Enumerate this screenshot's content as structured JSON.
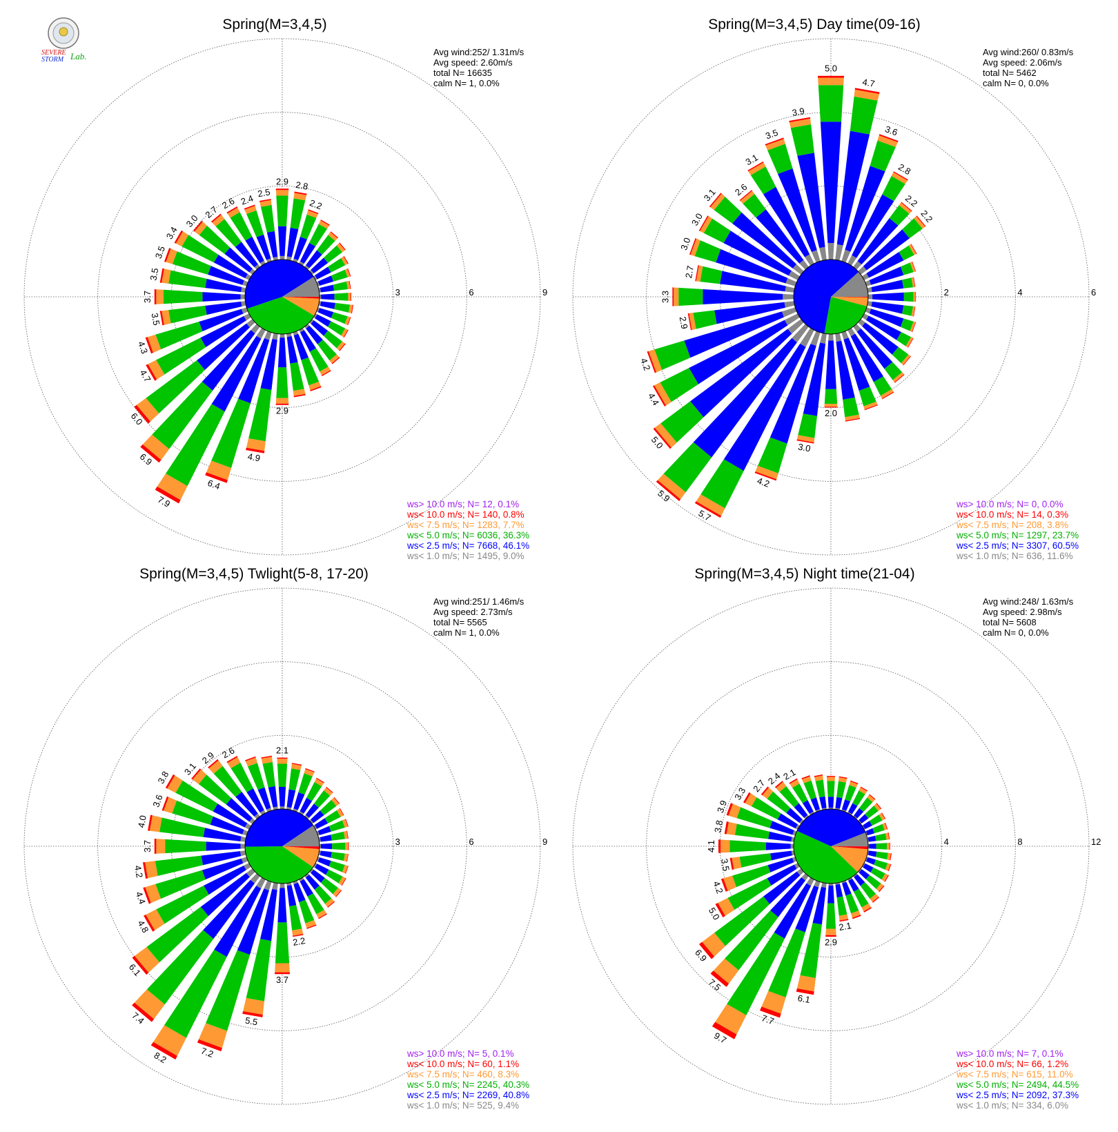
{
  "colors": {
    "gt10": "#a020f0",
    "lt10": "#ff0000",
    "lt7_5": "#ff9933",
    "lt5": "#00c400",
    "lt2_5": "#0000ff",
    "lt1": "#888888"
  },
  "logo": {
    "line1": "SEVERE",
    "line2": "STORM",
    "line3": "Lab."
  },
  "chart_data": [
    {
      "type": "wind-rose",
      "title": "Spring(M=3,4,5)",
      "stats": {
        "avg_wind": "Avg wind:252/ 1.31m/s",
        "avg_speed": "Avg speed: 2.60m/s",
        "total": "total N=      16635",
        "calm": "calm N=       1,   0.0%"
      },
      "rings": [
        "3",
        "6",
        "9"
      ],
      "ring_max": 9,
      "pie": [
        0.0,
        0.008,
        0.077,
        0.363,
        0.461,
        0.09
      ],
      "legend": [
        "ws> 10.0 m/s; N=     12,  0.1%",
        "ws< 10.0 m/s; N=    140,  0.8%",
        "ws<  7.5 m/s; N=   1283,  7.7%",
        "ws<  5.0 m/s; N=   6036, 36.3%",
        "ws<  2.5 m/s; N=   7668, 46.1%",
        "ws<  1.0 m/s; N=   1495,  9.0%"
      ],
      "directions": [
        0,
        10,
        20,
        30,
        40,
        50,
        60,
        70,
        80,
        90,
        100,
        110,
        120,
        130,
        140,
        150,
        160,
        170,
        180,
        190,
        200,
        210,
        220,
        230,
        240,
        250,
        260,
        270,
        280,
        290,
        300,
        310,
        320,
        330,
        340,
        350
      ],
      "totals": [
        2.9,
        2.8,
        2.2,
        2.0,
        1.8,
        1.7,
        1.5,
        1.4,
        1.3,
        1.3,
        1.4,
        1.4,
        1.5,
        1.7,
        1.9,
        2.1,
        2.5,
        2.6,
        2.9,
        4.9,
        6.4,
        7.9,
        6.9,
        6.0,
        4.7,
        4.3,
        3.5,
        3.7,
        3.5,
        3.5,
        3.4,
        3.0,
        2.7,
        2.6,
        2.4,
        2.5
      ],
      "labels": [
        "2.9",
        "2.8",
        "2.2",
        "",
        "",
        "",
        "",
        "",
        "",
        "",
        "",
        "",
        "",
        "",
        "",
        "",
        "",
        "",
        "2.9",
        "4.9",
        "6.4",
        "7.9",
        "6.9",
        "6.0",
        "4.7",
        "4.3",
        "3.5",
        "3.7",
        "3.5",
        "3.5",
        "3.4",
        "3.0",
        "2.7",
        "2.6",
        "2.4",
        "2.5"
      ]
    },
    {
      "type": "wind-rose",
      "title": "Spring(M=3,4,5) Day time(09-16)",
      "stats": {
        "avg_wind": "Avg wind:260/ 0.83m/s",
        "avg_speed": "Avg speed: 2.06m/s",
        "total": "total N=       5462",
        "calm": "calm N=       0,   0.0%"
      },
      "rings": [
        "2",
        "4",
        "6"
      ],
      "ring_max": 6,
      "pie": [
        0.0,
        0.003,
        0.038,
        0.237,
        0.605,
        0.116
      ],
      "legend": [
        "ws> 10.0 m/s; N=      0,  0.0%",
        "ws< 10.0 m/s; N=     14,  0.3%",
        "ws<  7.5 m/s; N=    208,  3.8%",
        "ws<  5.0 m/s; N=   1297, 23.7%",
        "ws<  2.5 m/s; N=   3307, 60.5%",
        "ws<  1.0 m/s; N=    636, 11.6%"
      ],
      "directions": [
        0,
        10,
        20,
        30,
        40,
        50,
        60,
        70,
        80,
        90,
        100,
        110,
        120,
        130,
        140,
        150,
        160,
        170,
        180,
        190,
        200,
        210,
        220,
        230,
        240,
        250,
        260,
        270,
        280,
        290,
        300,
        310,
        320,
        330,
        340,
        350
      ],
      "totals": [
        5.0,
        4.7,
        3.6,
        2.8,
        2.2,
        2.2,
        1.6,
        1.4,
        1.3,
        1.3,
        1.3,
        1.4,
        1.5,
        1.7,
        1.9,
        2.1,
        2.2,
        2.4,
        2.0,
        3.0,
        4.2,
        5.7,
        5.9,
        5.0,
        4.4,
        4.2,
        2.9,
        3.3,
        2.7,
        3.0,
        3.0,
        3.1,
        2.6,
        3.1,
        3.5,
        3.9
      ],
      "labels": [
        "5.0",
        "4.7",
        "3.6",
        "2.8",
        "2.2",
        "2.2",
        "",
        "",
        "",
        "",
        "",
        "",
        "",
        "",
        "",
        "",
        "",
        "",
        "2.0",
        "3.0",
        "4.2",
        "5.7",
        "5.9",
        "5.0",
        "4.4",
        "4.2",
        "2.9",
        "3.3",
        "2.7",
        "3.0",
        "3.0",
        "3.1",
        "2.6",
        "3.1",
        "3.5",
        "3.9"
      ]
    },
    {
      "type": "wind-rose",
      "title": "Spring(M=3,4,5) Twlight(5-8, 17-20)",
      "stats": {
        "avg_wind": "Avg wind:251/ 1.46m/s",
        "avg_speed": "Avg speed: 2.73m/s",
        "total": "total N=       5565",
        "calm": "calm N=       1,   0.0%"
      },
      "rings": [
        "3",
        "6",
        "9"
      ],
      "ring_max": 9,
      "pie": [
        0.001,
        0.011,
        0.083,
        0.403,
        0.408,
        0.094
      ],
      "legend": [
        "ws> 10.0 m/s; N=      5,  0.1%",
        "ws< 10.0 m/s; N=     60,  1.1%",
        "ws<  7.5 m/s; N=    460,  8.3%",
        "ws<  5.0 m/s; N=   2245, 40.3%",
        "ws<  2.5 m/s; N=   2269, 40.8%",
        "ws<  1.0 m/s; N=    525,  9.4%"
      ],
      "directions": [
        0,
        10,
        20,
        30,
        40,
        50,
        60,
        70,
        80,
        90,
        100,
        110,
        120,
        130,
        140,
        150,
        160,
        170,
        180,
        190,
        200,
        210,
        220,
        230,
        240,
        250,
        260,
        270,
        280,
        290,
        300,
        310,
        320,
        330,
        340,
        350
      ],
      "totals": [
        2.1,
        1.9,
        1.8,
        1.6,
        1.5,
        1.4,
        1.3,
        1.3,
        1.2,
        1.2,
        1.2,
        1.3,
        1.4,
        1.5,
        1.6,
        1.8,
        2.0,
        2.2,
        3.7,
        5.5,
        7.2,
        8.2,
        7.4,
        6.1,
        4.8,
        4.4,
        4.2,
        3.7,
        4.0,
        3.6,
        3.8,
        3.1,
        2.9,
        2.6,
        2.3,
        2.2
      ],
      "labels": [
        "2.1",
        "",
        "",
        "",
        "",
        "",
        "",
        "",
        "",
        "",
        "",
        "",
        "",
        "",
        "",
        "",
        "",
        "2.2",
        "3.7",
        "5.5",
        "7.2",
        "8.2",
        "7.4",
        "6.1",
        "4.8",
        "4.4",
        "4.2",
        "3.7",
        "4.0",
        "3.6",
        "3.8",
        "3.1",
        "2.9",
        "2.6",
        "",
        ""
      ]
    },
    {
      "type": "wind-rose",
      "title": "Spring(M=3,4,5) Night time(21-04)",
      "stats": {
        "avg_wind": "Avg wind:248/ 1.63m/s",
        "avg_speed": "Avg speed: 2.98m/s",
        "total": "total N=       5608",
        "calm": "calm N=       0,   0.0%"
      },
      "rings": [
        "4",
        "8",
        "12"
      ],
      "ring_max": 12,
      "pie": [
        0.001,
        0.012,
        0.11,
        0.445,
        0.373,
        0.06
      ],
      "legend": [
        "ws> 10.0 m/s; N=      7,  0.1%",
        "ws< 10.0 m/s; N=     66,  1.2%",
        "ws<  7.5 m/s; N=    615, 11.0%",
        "ws<  5.0 m/s; N=   2494, 44.5%",
        "ws<  2.5 m/s; N=   2092, 37.3%",
        "ws<  1.0 m/s; N=    334,  6.0%"
      ],
      "directions": [
        0,
        10,
        20,
        30,
        40,
        50,
        60,
        70,
        80,
        90,
        100,
        110,
        120,
        130,
        140,
        150,
        160,
        170,
        180,
        190,
        200,
        210,
        220,
        230,
        240,
        250,
        260,
        270,
        280,
        290,
        300,
        310,
        320,
        330,
        340,
        350
      ],
      "totals": [
        1.8,
        1.8,
        1.7,
        1.6,
        1.5,
        1.4,
        1.3,
        1.2,
        1.2,
        1.2,
        1.3,
        1.4,
        1.5,
        1.6,
        1.8,
        2.0,
        2.1,
        2.1,
        2.9,
        6.1,
        7.7,
        9.7,
        7.5,
        6.9,
        5.0,
        4.2,
        3.5,
        4.1,
        3.8,
        3.9,
        3.3,
        2.7,
        2.4,
        2.1,
        2.0,
        1.9
      ],
      "labels": [
        "",
        "",
        "",
        "",
        "",
        "",
        "",
        "",
        "",
        "",
        "",
        "",
        "",
        "",
        "",
        "",
        "",
        "2.1",
        "2.9",
        "6.1",
        "7.7",
        "9.7",
        "7.5",
        "6.9",
        "5.0",
        "4.2",
        "3.5",
        "4.1",
        "3.8",
        "3.9",
        "3.3",
        "2.7",
        "2.4",
        "2.1",
        "",
        ""
      ]
    }
  ]
}
